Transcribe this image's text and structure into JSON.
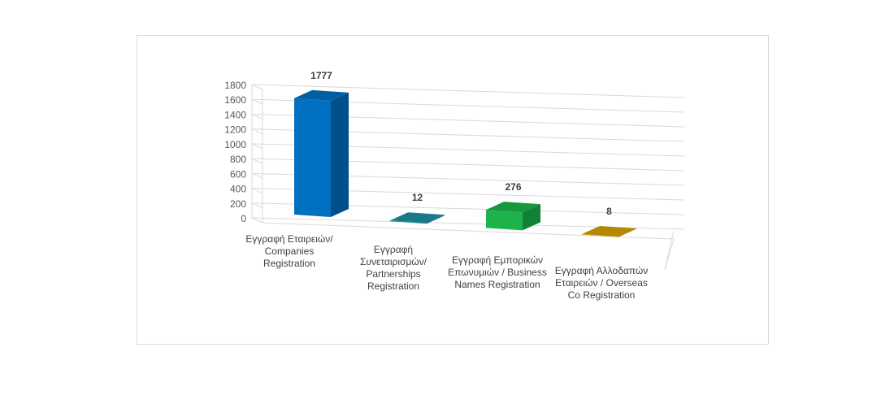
{
  "chart_data": {
    "type": "bar",
    "style": "3d-column",
    "title": "",
    "xlabel": "",
    "ylabel": "",
    "ylim": [
      0,
      1800
    ],
    "yticks": [
      0,
      200,
      400,
      600,
      800,
      1000,
      1200,
      1400,
      1600,
      1800
    ],
    "grid": true,
    "legend": "none",
    "categories": [
      [
        "Εγγραφή Εταιρειών/",
        "Companies",
        "Registration"
      ],
      [
        "Εγγραφή",
        "Συνεταιρισμών/",
        "Partnerships",
        "Registration"
      ],
      [
        "Εγγραφή Εμπορικών",
        "Επωνυμιών / Business",
        "Names Registration"
      ],
      [
        "Εγγραφή Αλλοδαπών",
        "Εταιρειών / Overseas",
        "Co Registration"
      ]
    ],
    "values": [
      1777,
      12,
      276,
      8
    ],
    "data_labels": [
      "1777",
      "12",
      "276",
      "8"
    ],
    "colors": [
      "#0070c0",
      "#1f8ea0",
      "#1bb34a",
      "#d4a000"
    ]
  }
}
